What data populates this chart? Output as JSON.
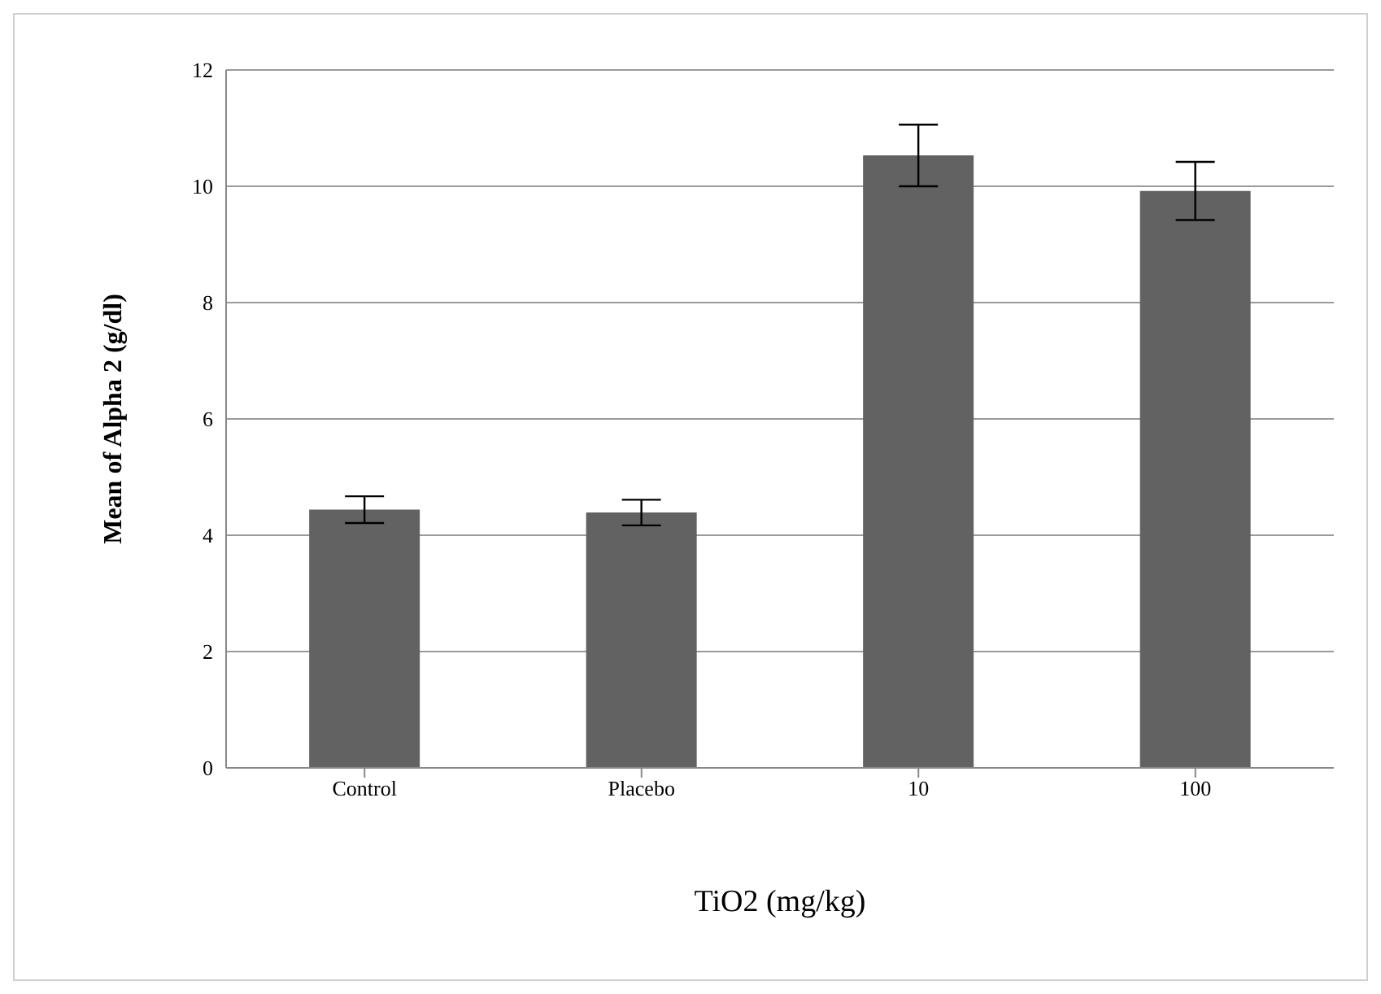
{
  "chart_data": {
    "type": "bar",
    "xlabel": "TiO2 (mg/kg)",
    "ylabel": "Mean of Alpha 2 (g/dl)",
    "categories": [
      "Control",
      "Placebo",
      "10",
      "100"
    ],
    "values": [
      4.44,
      4.39,
      10.53,
      9.92
    ],
    "errors": [
      0.23,
      0.22,
      0.53,
      0.5
    ],
    "color": "#626262",
    "ylim": [
      0,
      12
    ],
    "yticks": [
      0,
      2,
      4,
      6,
      8,
      10,
      12
    ],
    "grid": "y",
    "legend": false
  }
}
